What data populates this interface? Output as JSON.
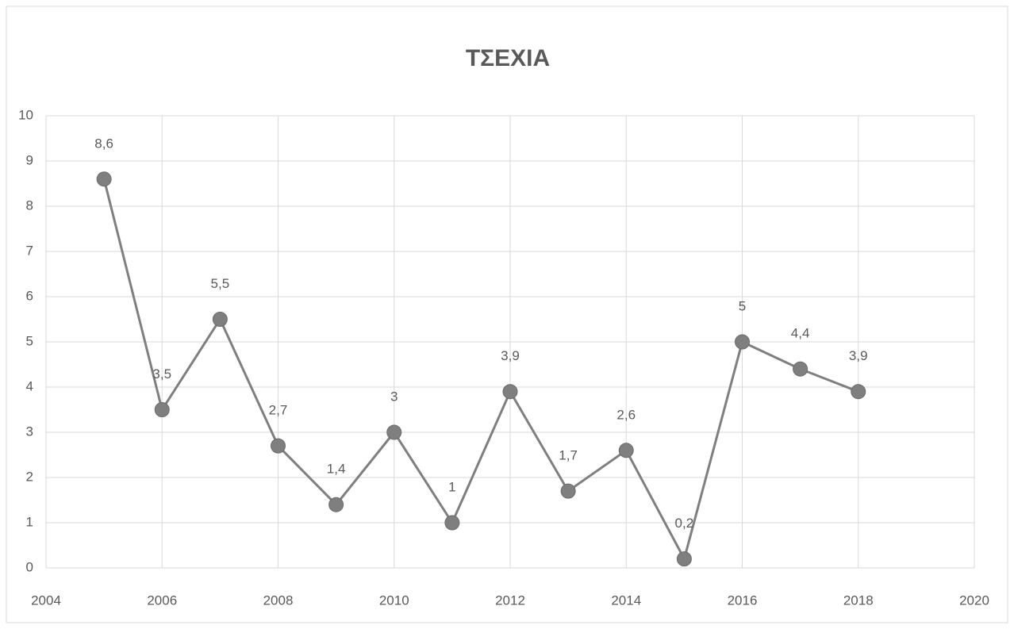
{
  "chart_data": {
    "type": "line",
    "title": "ΤΣΕΧΙΑ",
    "x": [
      2005,
      2006,
      2007,
      2008,
      2009,
      2010,
      2011,
      2012,
      2013,
      2014,
      2015,
      2016,
      2017,
      2018
    ],
    "series": [
      {
        "name": "ΤΣΕΧΙΑ",
        "color": "#7f7f7f",
        "values": [
          8.6,
          3.5,
          5.5,
          2.7,
          1.4,
          3,
          1,
          3.9,
          1.7,
          2.6,
          0.2,
          5,
          4.4,
          3.9
        ],
        "value_labels": [
          "8,6",
          "3,5",
          "5,5",
          "2,7",
          "1,4",
          "3",
          "1",
          "3,9",
          "1,7",
          "2,6",
          "0,2",
          "5",
          "4,4",
          "3,9"
        ]
      }
    ],
    "xlim": [
      2004,
      2020
    ],
    "xticks": [
      2004,
      2006,
      2008,
      2010,
      2012,
      2014,
      2016,
      2018,
      2020
    ],
    "ylim": [
      0,
      10
    ],
    "yticks": [
      0,
      1,
      2,
      3,
      4,
      5,
      6,
      7,
      8,
      9,
      10
    ],
    "grid": true
  }
}
